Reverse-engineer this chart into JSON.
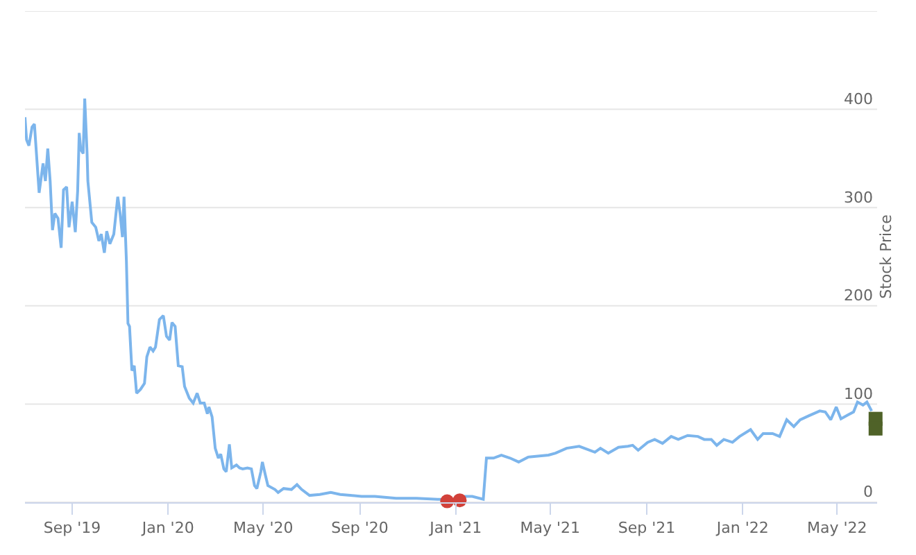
{
  "chart_data": {
    "type": "line",
    "ylabel": "Stock Price",
    "xlim": [
      "2019-07-03",
      "2022-06-21"
    ],
    "xticks": [
      {
        "value": "2019-09-01",
        "label": "Sep '19"
      },
      {
        "value": "2020-01-01",
        "label": "Jan '20"
      },
      {
        "value": "2020-05-01",
        "label": "May '20"
      },
      {
        "value": "2020-09-01",
        "label": "Sep '20"
      },
      {
        "value": "2021-01-01",
        "label": "Jan '21"
      },
      {
        "value": "2021-05-01",
        "label": "May '21"
      },
      {
        "value": "2021-09-01",
        "label": "Sep '21"
      },
      {
        "value": "2022-01-01",
        "label": "Jan '22"
      },
      {
        "value": "2022-05-01",
        "label": "May '22"
      }
    ],
    "ylim": [
      0,
      500
    ],
    "yticks": [
      0,
      100,
      200,
      300,
      400,
      {
        "value": 500,
        "label": null
      }
    ],
    "grid": "y",
    "series": [
      {
        "color": "#7cb5ec",
        "marker": "none",
        "x": [
          "2019-07-03",
          "2019-07-05",
          "2019-07-08",
          "2019-07-12",
          "2019-07-15",
          "2019-07-21",
          "2019-07-26",
          "2019-07-29",
          "2019-08-01",
          "2019-08-04",
          "2019-08-07",
          "2019-08-10",
          "2019-08-14",
          "2019-08-18",
          "2019-08-21",
          "2019-08-25",
          "2019-08-28",
          "2019-09-01",
          "2019-09-05",
          "2019-09-08",
          "2019-09-10",
          "2019-09-12",
          "2019-09-15",
          "2019-09-17",
          "2019-09-20",
          "2019-09-21",
          "2019-09-26",
          "2019-10-01",
          "2019-10-05",
          "2019-10-08",
          "2019-10-12",
          "2019-10-15",
          "2019-10-19",
          "2019-10-24",
          "2019-10-29",
          "2019-11-01",
          "2019-11-04",
          "2019-11-06",
          "2019-11-09",
          "2019-11-11",
          "2019-11-13",
          "2019-11-16",
          "2019-11-19",
          "2019-11-22",
          "2019-11-27",
          "2019-12-02",
          "2019-12-05",
          "2019-12-09",
          "2019-12-13",
          "2019-12-16",
          "2019-12-21",
          "2019-12-26",
          "2019-12-30",
          "2020-01-03",
          "2020-01-06",
          "2020-01-10",
          "2020-01-14",
          "2020-01-19",
          "2020-01-22",
          "2020-01-28",
          "2020-02-02",
          "2020-02-07",
          "2020-02-11",
          "2020-02-16",
          "2020-02-20",
          "2020-02-22",
          "2020-02-26",
          "2020-03-01",
          "2020-03-05",
          "2020-03-08",
          "2020-03-12",
          "2020-03-15",
          "2020-03-19",
          "2020-03-22",
          "2020-03-28",
          "2020-04-01",
          "2020-04-05",
          "2020-04-11",
          "2020-04-16",
          "2020-04-20",
          "2020-04-23",
          "2020-04-28",
          "2020-04-30",
          "2020-05-04",
          "2020-05-07",
          "2020-05-16",
          "2020-05-20",
          "2020-05-27",
          "2020-06-06",
          "2020-06-13",
          "2020-06-19",
          "2020-06-29",
          "2020-07-12",
          "2020-07-26",
          "2020-08-07",
          "2020-08-20",
          "2020-09-03",
          "2020-09-20",
          "2020-10-17",
          "2020-11-12",
          "2020-12-09",
          "2021-01-05",
          "2021-01-13",
          "2021-01-22",
          "2021-02-05",
          "2021-02-09",
          "2021-02-18",
          "2021-02-28",
          "2021-03-11",
          "2021-03-22",
          "2021-04-03",
          "2021-04-29",
          "2021-05-08",
          "2021-05-22",
          "2021-06-07",
          "2021-06-27",
          "2021-07-04",
          "2021-07-14",
          "2021-07-27",
          "2021-08-08",
          "2021-08-14",
          "2021-08-21",
          "2021-09-02",
          "2021-09-11",
          "2021-09-21",
          "2021-10-02",
          "2021-10-11",
          "2021-10-23",
          "2021-11-05",
          "2021-11-13",
          "2021-11-22",
          "2021-11-29",
          "2021-12-08",
          "2021-12-19",
          "2021-12-28",
          "2022-01-11",
          "2022-01-20",
          "2022-01-27",
          "2022-02-08",
          "2022-02-17",
          "2022-02-26",
          "2022-03-07",
          "2022-03-15",
          "2022-03-26",
          "2022-04-09",
          "2022-04-16",
          "2022-04-23",
          "2022-04-30",
          "2022-05-06",
          "2022-05-15",
          "2022-05-22",
          "2022-05-27",
          "2022-06-03",
          "2022-06-08",
          "2022-06-14"
        ],
        "values": [
          392,
          369,
          363,
          382,
          385,
          315,
          345,
          327,
          360,
          327,
          277,
          294,
          289,
          259,
          318,
          321,
          280,
          306,
          275,
          317,
          376,
          359,
          355,
          411,
          355,
          327,
          285,
          280,
          266,
          273,
          254,
          276,
          263,
          273,
          311,
          294,
          270,
          311,
          246,
          182,
          179,
          134,
          139,
          111,
          115,
          121,
          148,
          158,
          154,
          158,
          186,
          190,
          169,
          165,
          183,
          179,
          139,
          138,
          118,
          106,
          101,
          111,
          101,
          101,
          90,
          97,
          87,
          55,
          45,
          49,
          34,
          31,
          59,
          35,
          38,
          35,
          34,
          35,
          34,
          17,
          14,
          31,
          41,
          27,
          17,
          13,
          10,
          14,
          13,
          18,
          13,
          7,
          8,
          10,
          8,
          7,
          6,
          6,
          4,
          4,
          3,
          3,
          6,
          6,
          3,
          45,
          45,
          48,
          45,
          41,
          46,
          48,
          50,
          55,
          57,
          51,
          55,
          50,
          56,
          57,
          58,
          53,
          61,
          64,
          60,
          67,
          64,
          68,
          67,
          64,
          64,
          58,
          64,
          61,
          67,
          74,
          64,
          70,
          70,
          67,
          84,
          77,
          84,
          88,
          93,
          92,
          84,
          97,
          85,
          89,
          92,
          102,
          99,
          102,
          93
        ]
      },
      {
        "type": "scatter",
        "color": "#d2413a",
        "marker": "circle",
        "x": [
          "2020-12-21",
          "2021-01-06"
        ],
        "values": [
          1,
          2
        ]
      },
      {
        "type": "scatter",
        "color": "#4f6228",
        "marker": "square",
        "x": [
          "2022-06-19",
          "2022-06-19"
        ],
        "values": [
          85,
          75
        ]
      }
    ]
  }
}
